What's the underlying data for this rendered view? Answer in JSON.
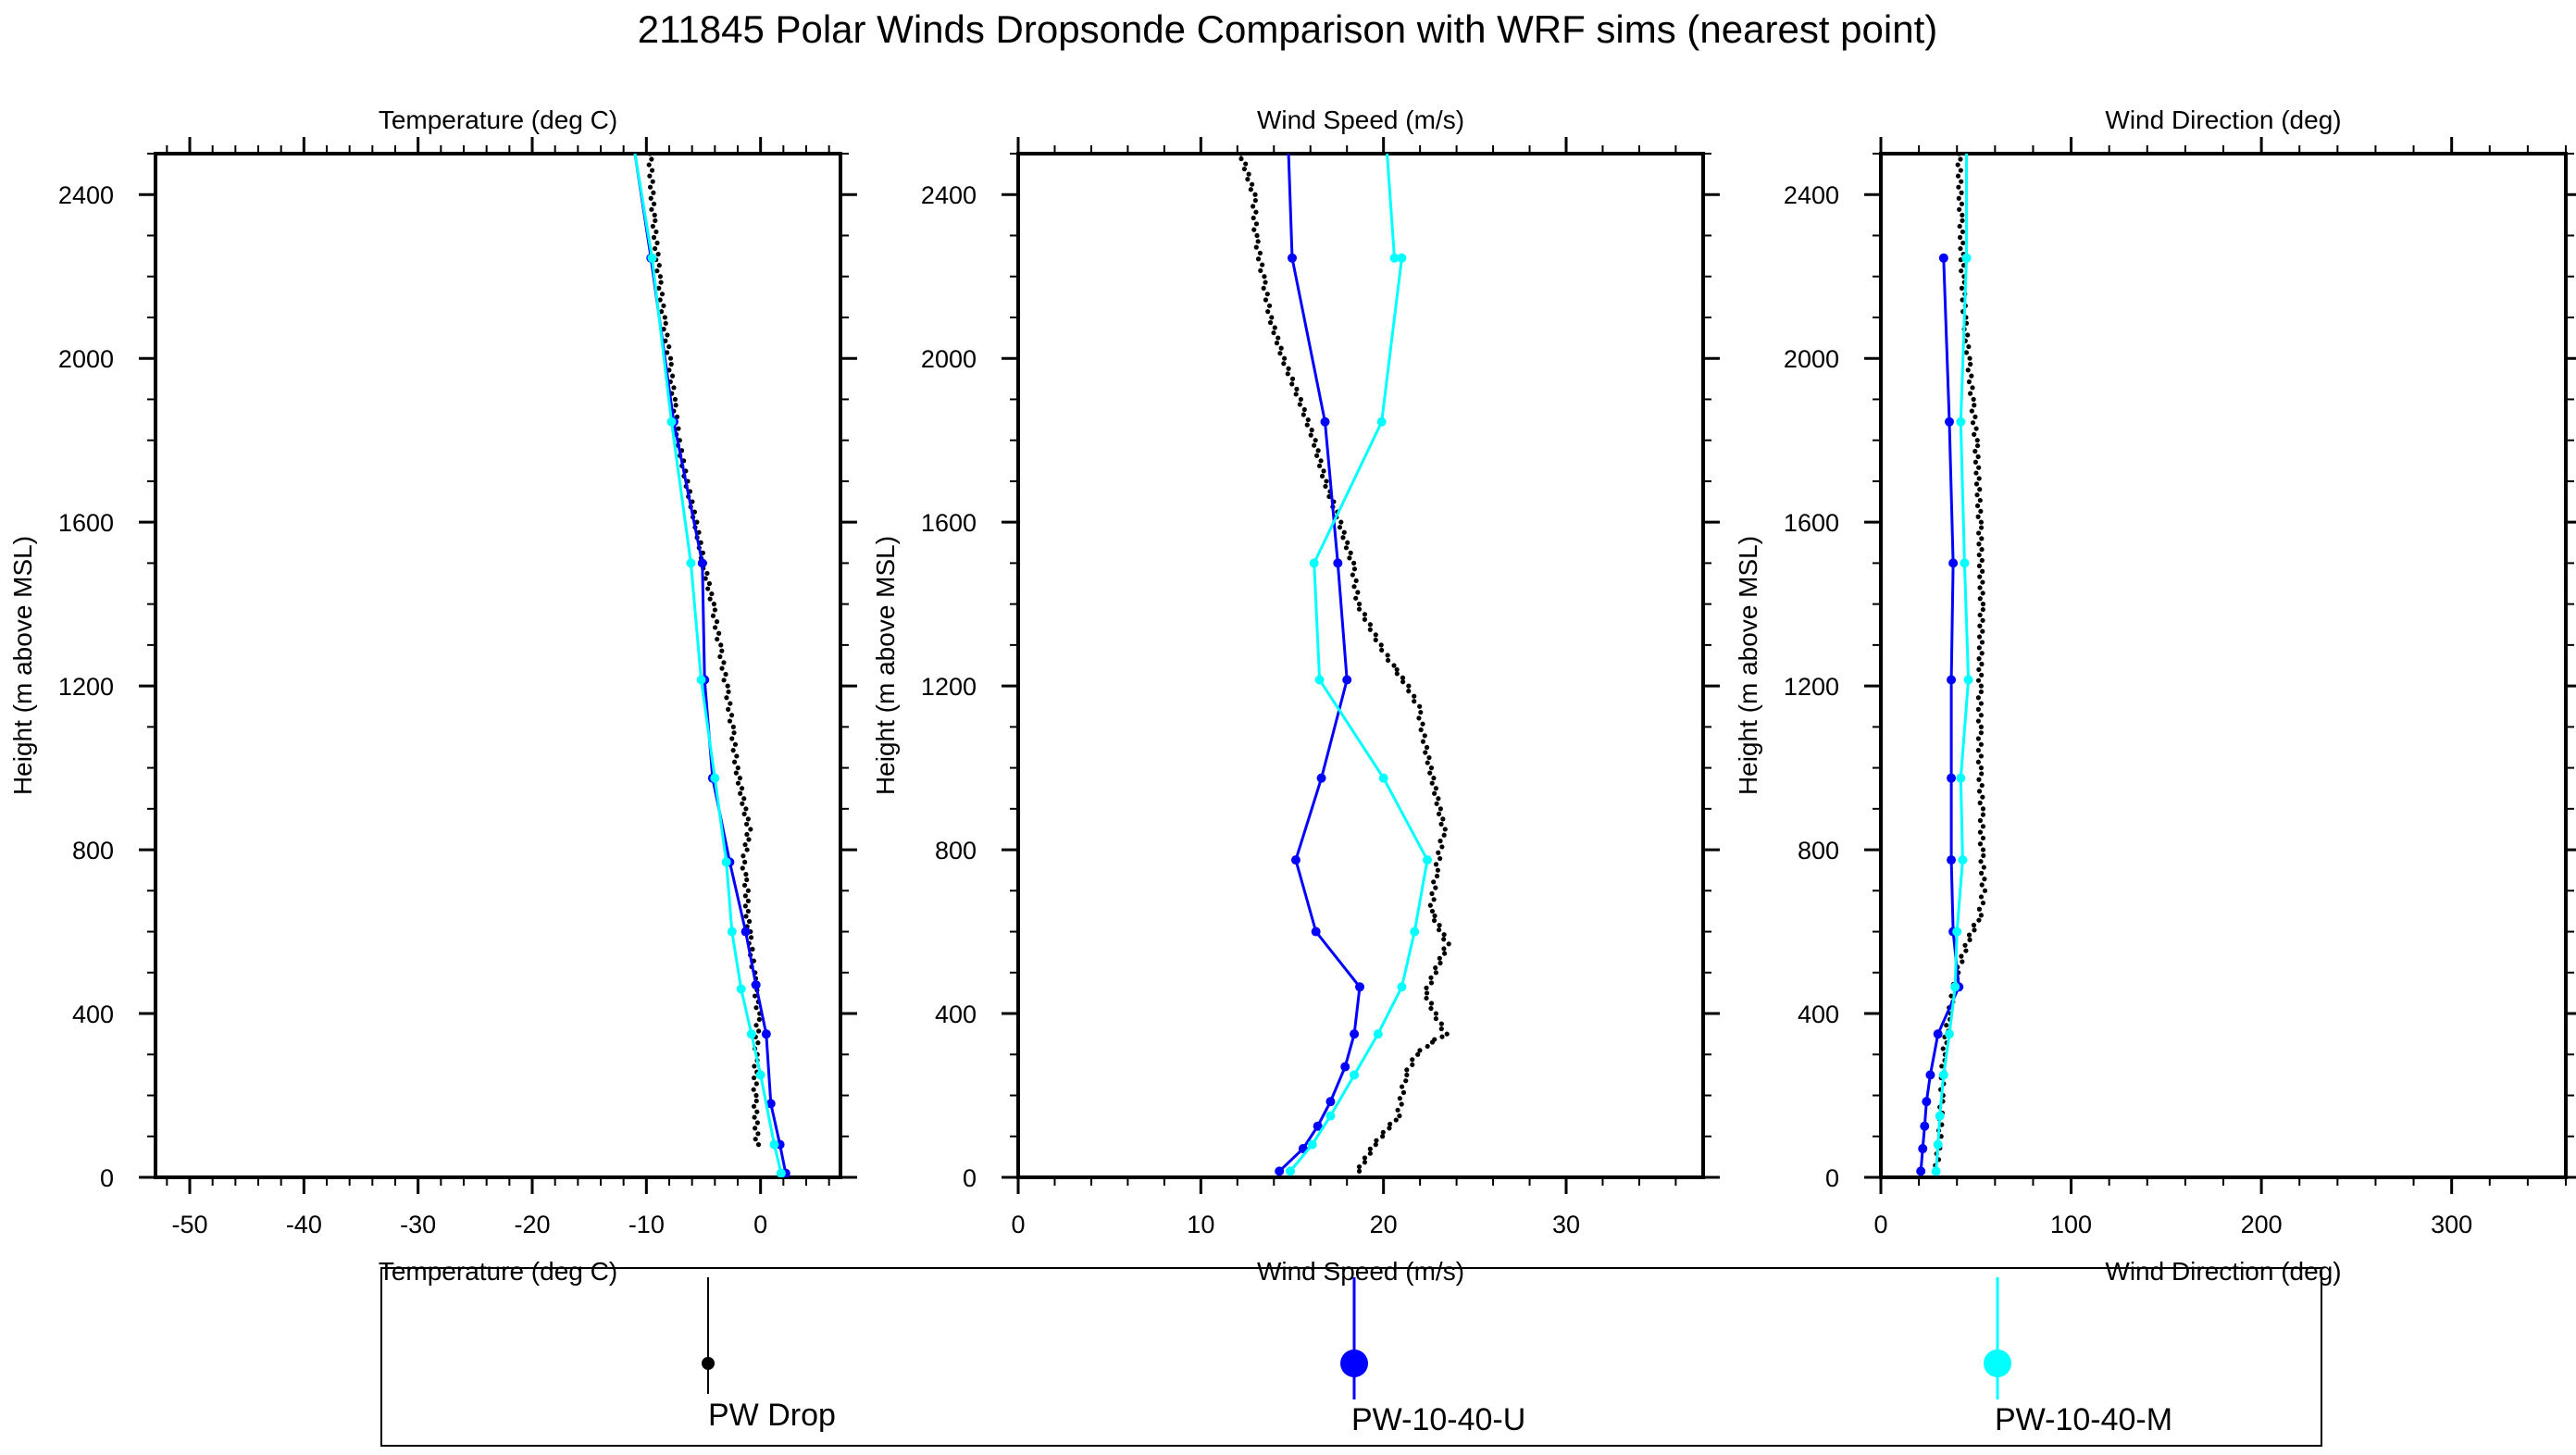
{
  "figure": {
    "title": "211845 Polar Winds Dropsonde Comparison with WRF sims (nearest point)",
    "colors": {
      "drop": "#000000",
      "upper": "#0000ff",
      "middle": "#00ffff",
      "frame": "#000000"
    },
    "legend": [
      {
        "label": "PW Drop",
        "color": "#000000",
        "marker": "small-dot"
      },
      {
        "label": "PW-10-40-U",
        "color": "#0000ff",
        "marker": "large-dot"
      },
      {
        "label": "PW-10-40-M",
        "color": "#00ffff",
        "marker": "large-dot"
      }
    ]
  },
  "chart_data": [
    {
      "type": "line",
      "title": "Temperature (deg C)",
      "xlabel": "Temperature (deg C)",
      "ylabel": "Height (m above MSL)",
      "xlim": [
        -53,
        7
      ],
      "ylim": [
        0,
        2500
      ],
      "xticks": [
        -50,
        -40,
        -30,
        -20,
        -10,
        0
      ],
      "xtick_labels": [
        "-50",
        "-40",
        "-30",
        "-20",
        "-10",
        "0"
      ],
      "yticks": [
        0,
        400,
        800,
        1200,
        1600,
        2000,
        2400
      ],
      "ytick_labels": [
        "0",
        "400",
        "800",
        "1200",
        "1600",
        "2000",
        "2400"
      ],
      "series": [
        {
          "name": "PW Drop",
          "style": "dots",
          "x": [
            -0.3,
            -0.5,
            -0.4,
            -0.2,
            -0.6,
            -1.0,
            -1.2,
            -1.2,
            -1.4,
            -1.5,
            -1.3,
            -1.0,
            -1.4,
            -2.1,
            -2.5,
            -3.0,
            -3.6,
            -4.2,
            -5.0,
            -5.7,
            -6.5,
            -7.2,
            -7.6,
            -8.0,
            -8.5,
            -8.9,
            -9.4,
            -9.7
          ],
          "y": [
            80,
            200,
            300,
            400,
            500,
            600,
            650,
            700,
            740,
            770,
            800,
            850,
            900,
            1000,
            1100,
            1200,
            1300,
            1400,
            1500,
            1600,
            1700,
            1800,
            1900,
            2000,
            2100,
            2200,
            2350,
            2500
          ]
        },
        {
          "name": "PW-10-40-U",
          "style": "line-markers",
          "x": [
            2.2,
            1.7,
            0.9,
            0.5,
            -0.4,
            -1.3,
            -2.7,
            -4.2,
            -4.9,
            -5.1,
            -7.6,
            -9.6,
            -11.0
          ],
          "y": [
            10,
            80,
            180,
            350,
            470,
            600,
            770,
            975,
            1215,
            1500,
            1845,
            2245,
            2500
          ]
        },
        {
          "name": "PW-10-40-M",
          "style": "line-markers",
          "x": [
            1.8,
            1.2,
            0.0,
            -0.8,
            -1.7,
            -2.5,
            -3.0,
            -4.0,
            -5.2,
            -6.1,
            -7.8,
            -9.5,
            -11.0
          ],
          "y": [
            10,
            80,
            250,
            350,
            460,
            600,
            770,
            975,
            1215,
            1500,
            1845,
            2245,
            2500
          ]
        }
      ]
    },
    {
      "type": "line",
      "title": "Wind Speed (m/s)",
      "xlabel": "Wind Speed (m/s)",
      "ylabel": "Height (m above MSL)",
      "xlim": [
        0,
        37.5
      ],
      "ylim": [
        0,
        2500
      ],
      "xticks": [
        0,
        10,
        20,
        30
      ],
      "xtick_labels": [
        "0",
        "10",
        "20",
        "30"
      ],
      "yticks": [
        0,
        400,
        800,
        1200,
        1600,
        2000,
        2400
      ],
      "ytick_labels": [
        "0",
        "400",
        "800",
        "1200",
        "1600",
        "2000",
        "2400"
      ],
      "series": [
        {
          "name": "PW Drop",
          "style": "dots",
          "x": [
            18.6,
            19.5,
            20.8,
            21.2,
            21.8,
            22.6,
            23.4,
            22.8,
            22.3,
            22.8,
            23.5,
            22.6,
            22.9,
            23.3,
            22.8,
            22.3,
            21.9,
            21.3,
            20.5,
            19.8,
            18.6,
            18.3,
            17.6,
            16.8,
            16.2,
            15.4,
            14.5,
            13.8,
            13.4,
            13.0,
            12.9,
            12.2
          ],
          "y": [
            15,
            80,
            150,
            250,
            300,
            330,
            350,
            400,
            450,
            500,
            570,
            650,
            750,
            850,
            950,
            1050,
            1150,
            1200,
            1250,
            1300,
            1400,
            1500,
            1600,
            1700,
            1800,
            1900,
            2000,
            2100,
            2200,
            2300,
            2400,
            2500
          ]
        },
        {
          "name": "PW-10-40-U",
          "style": "line-markers",
          "x": [
            14.3,
            15.6,
            16.4,
            17.1,
            17.9,
            18.4,
            18.7,
            16.3,
            15.2,
            16.6,
            18.0,
            17.5,
            16.8,
            15.0,
            14.8
          ],
          "y": [
            15,
            70,
            125,
            185,
            270,
            350,
            465,
            600,
            775,
            975,
            1215,
            1500,
            1845,
            2245,
            2500
          ]
        },
        {
          "name": "PW-10-40-M",
          "style": "line-markers",
          "x": [
            14.9,
            16.1,
            17.1,
            18.4,
            19.7,
            21.0,
            21.7,
            22.4,
            20.0,
            16.5,
            16.2,
            19.9,
            21.0,
            20.6,
            20.2
          ],
          "y": [
            15,
            80,
            150,
            250,
            350,
            465,
            600,
            775,
            975,
            1215,
            1500,
            1845,
            2245,
            2245,
            2500
          ]
        }
      ]
    },
    {
      "type": "line",
      "title": "Wind Direction (deg)",
      "xlabel": "Wind Direction (deg)",
      "ylabel": "Height (m above MSL)",
      "xlim": [
        0,
        360
      ],
      "ylim": [
        0,
        2500
      ],
      "xticks": [
        0,
        100,
        200,
        300
      ],
      "xtick_labels": [
        "0",
        "100",
        "200",
        "300"
      ],
      "yticks": [
        0,
        400,
        800,
        1200,
        1600,
        2000,
        2400
      ],
      "ytick_labels": [
        "0",
        "400",
        "800",
        "1200",
        "1600",
        "2000",
        "2400"
      ],
      "series": [
        {
          "name": "PW Drop",
          "style": "dots",
          "x": [
            29,
            31,
            32,
            33,
            36,
            40,
            46,
            52,
            54,
            53,
            53,
            52,
            52,
            52,
            53,
            52,
            50,
            48,
            46,
            44,
            43,
            42,
            41
          ],
          "y": [
            15,
            100,
            200,
            300,
            400,
            500,
            580,
            640,
            700,
            800,
            900,
            1000,
            1100,
            1200,
            1400,
            1600,
            1800,
            1900,
            2000,
            2100,
            2200,
            2350,
            2500
          ]
        },
        {
          "name": "PW-10-40-U",
          "style": "line-markers",
          "x": [
            21,
            22,
            23,
            24,
            26,
            30,
            41,
            38,
            37,
            37,
            37,
            38,
            36,
            33
          ],
          "y": [
            15,
            70,
            125,
            185,
            250,
            350,
            465,
            600,
            775,
            975,
            1215,
            1500,
            1845,
            2245
          ]
        },
        {
          "name": "PW-10-40-M",
          "style": "line-markers",
          "x": [
            29,
            30,
            31,
            33,
            36,
            39,
            40,
            43,
            42,
            46,
            44,
            42,
            45,
            45,
            45
          ],
          "y": [
            15,
            80,
            150,
            250,
            350,
            465,
            600,
            775,
            975,
            1215,
            1500,
            1845,
            2245,
            2245,
            2500
          ]
        }
      ]
    }
  ]
}
